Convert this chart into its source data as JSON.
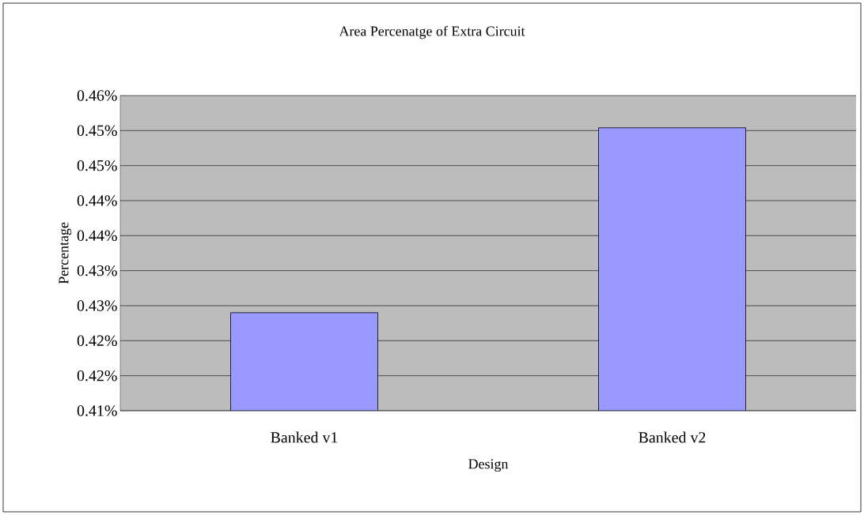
{
  "chart_data": {
    "type": "bar",
    "title": "Area Percenatge of Extra Circuit",
    "xlabel": "Design",
    "ylabel": "Percentage",
    "categories": [
      "Banked v1",
      "Banked v2"
    ],
    "values": [
      0.424,
      0.4504
    ],
    "color": "#9999ff",
    "ylim": [
      0.41,
      0.455
    ],
    "yticks": [
      {
        "value": 0.41,
        "label": "0.41%"
      },
      {
        "value": 0.415,
        "label": "0.42%"
      },
      {
        "value": 0.42,
        "label": "0.42%"
      },
      {
        "value": 0.425,
        "label": "0.43%"
      },
      {
        "value": 0.43,
        "label": "0.43%"
      },
      {
        "value": 0.435,
        "label": "0.44%"
      },
      {
        "value": 0.44,
        "label": "0.44%"
      },
      {
        "value": 0.445,
        "label": "0.45%"
      },
      {
        "value": 0.45,
        "label": "0.45%"
      },
      {
        "value": 0.455,
        "label": "0.46%"
      }
    ],
    "grid": "y"
  }
}
